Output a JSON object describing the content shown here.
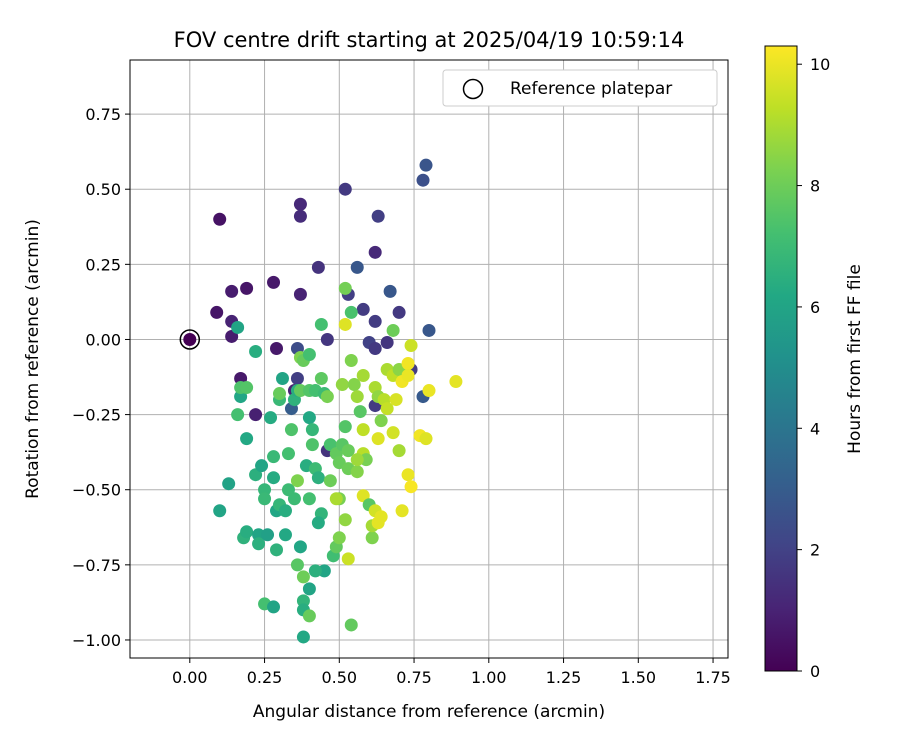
{
  "chart_data": {
    "type": "scatter",
    "title": "FOV centre drift starting at 2025/04/19 10:59:14",
    "xlabel": "Angular distance from reference (arcmin)",
    "ylabel": "Rotation from reference (arcmin)",
    "xlim": [
      -0.2,
      1.8
    ],
    "ylim": [
      -1.06,
      0.93
    ],
    "xticks": [
      0.0,
      0.25,
      0.5,
      0.75,
      1.0,
      1.25,
      1.5,
      1.75
    ],
    "xtick_labels": [
      "0.00",
      "0.25",
      "0.50",
      "0.75",
      "1.00",
      "1.25",
      "1.50",
      "1.75"
    ],
    "yticks": [
      0.75,
      0.5,
      0.25,
      0.0,
      -0.25,
      -0.5,
      -0.75,
      -1.0
    ],
    "ytick_labels": [
      "0.75",
      "0.50",
      "0.25",
      "0.00",
      "−0.25",
      "−0.50",
      "−0.75",
      "−1.00"
    ],
    "grid": true,
    "legend": {
      "position": "top-right",
      "entries": [
        "Reference platepar"
      ]
    },
    "reference_point": {
      "x": 0.0,
      "y": 0.0
    },
    "colorbar": {
      "label": "Hours from first FF file",
      "colormap": "viridis",
      "range": [
        0,
        10.3
      ],
      "ticks": [
        0,
        2,
        4,
        6,
        8,
        10
      ],
      "tick_labels": [
        "0",
        "2",
        "4",
        "6",
        "8",
        "10"
      ]
    },
    "series": [
      {
        "points": [
          [
            0.0,
            0.0,
            0.0
          ],
          [
            0.1,
            0.4,
            0.5
          ],
          [
            0.09,
            0.09,
            0.6
          ],
          [
            0.14,
            0.16,
            0.8
          ],
          [
            0.14,
            0.06,
            1.0
          ],
          [
            0.14,
            0.01,
            0.8
          ],
          [
            0.19,
            0.17,
            0.6
          ],
          [
            0.17,
            -0.13,
            0.7
          ],
          [
            0.22,
            -0.25,
            0.9
          ],
          [
            0.28,
            0.19,
            0.7
          ],
          [
            0.29,
            -0.03,
            0.7
          ],
          [
            0.37,
            0.45,
            1.2
          ],
          [
            0.37,
            0.41,
            1.3
          ],
          [
            0.37,
            0.15,
            1.0
          ],
          [
            0.36,
            -0.03,
            2.4
          ],
          [
            0.43,
            0.24,
            1.5
          ],
          [
            0.46,
            0.0,
            1.6
          ],
          [
            0.52,
            0.5,
            1.7
          ],
          [
            0.53,
            0.15,
            1.9
          ],
          [
            0.56,
            0.24,
            2.8
          ],
          [
            0.58,
            0.1,
            1.8
          ],
          [
            0.62,
            0.29,
            1.2
          ],
          [
            0.63,
            0.41,
            1.9
          ],
          [
            0.62,
            0.06,
            1.8
          ],
          [
            0.67,
            0.16,
            2.8
          ],
          [
            0.7,
            0.09,
            1.7
          ],
          [
            0.66,
            -0.01,
            1.6
          ],
          [
            0.6,
            -0.01,
            2.0
          ],
          [
            0.62,
            -0.03,
            1.7
          ],
          [
            0.78,
            0.53,
            2.5
          ],
          [
            0.79,
            0.58,
            2.7
          ],
          [
            0.8,
            0.03,
            2.8
          ],
          [
            0.78,
            -0.19,
            2.9
          ],
          [
            0.74,
            -0.1,
            1.8
          ],
          [
            0.36,
            -0.13,
            1.9
          ],
          [
            0.34,
            -0.23,
            3.0
          ],
          [
            0.35,
            -0.17,
            1.0
          ],
          [
            0.62,
            -0.22,
            1.8
          ],
          [
            0.46,
            -0.37,
            1.5
          ],
          [
            0.16,
            0.04,
            6.0
          ],
          [
            0.22,
            -0.04,
            6.4
          ],
          [
            0.17,
            -0.19,
            6.1
          ],
          [
            0.19,
            -0.33,
            6.2
          ],
          [
            0.27,
            -0.26,
            6.3
          ],
          [
            0.13,
            -0.48,
            5.9
          ],
          [
            0.1,
            -0.57,
            6.0
          ],
          [
            0.16,
            -0.25,
            7.2
          ],
          [
            0.17,
            -0.16,
            7.4
          ],
          [
            0.19,
            -0.16,
            7.5
          ],
          [
            0.22,
            -0.45,
            6.5
          ],
          [
            0.24,
            -0.42,
            6.0
          ],
          [
            0.25,
            -0.5,
            6.8
          ],
          [
            0.25,
            -0.53,
            6.9
          ],
          [
            0.18,
            -0.66,
            6.6
          ],
          [
            0.19,
            -0.64,
            6.4
          ],
          [
            0.23,
            -0.65,
            6.0
          ],
          [
            0.23,
            -0.68,
            6.5
          ],
          [
            0.26,
            -0.65,
            5.8
          ],
          [
            0.29,
            -0.7,
            6.6
          ],
          [
            0.25,
            -0.88,
            7.2
          ],
          [
            0.28,
            -0.89,
            6.0
          ],
          [
            0.3,
            -0.2,
            6.9
          ],
          [
            0.3,
            -0.18,
            7.9
          ],
          [
            0.31,
            -0.13,
            6.0
          ],
          [
            0.28,
            -0.39,
            6.9
          ],
          [
            0.28,
            -0.46,
            6.3
          ],
          [
            0.29,
            -0.57,
            6.1
          ],
          [
            0.3,
            -0.55,
            6.8
          ],
          [
            0.32,
            -0.65,
            6.2
          ],
          [
            0.32,
            -0.57,
            6.4
          ],
          [
            0.33,
            -0.5,
            7.0
          ],
          [
            0.33,
            -0.38,
            7.2
          ],
          [
            0.34,
            -0.3,
            7.4
          ],
          [
            0.35,
            -0.2,
            6.6
          ],
          [
            0.36,
            -0.17,
            6.4
          ],
          [
            0.37,
            -0.17,
            7.8
          ],
          [
            0.36,
            -0.47,
            8.3
          ],
          [
            0.36,
            -0.75,
            7.6
          ],
          [
            0.37,
            -0.69,
            6.1
          ],
          [
            0.38,
            -0.79,
            8.0
          ],
          [
            0.38,
            -0.87,
            6.7
          ],
          [
            0.38,
            -0.9,
            6.4
          ],
          [
            0.38,
            -0.99,
            6.2
          ],
          [
            0.4,
            -0.83,
            6.0
          ],
          [
            0.4,
            -0.92,
            7.9
          ],
          [
            0.39,
            -0.42,
            6.4
          ],
          [
            0.4,
            -0.26,
            6.2
          ],
          [
            0.41,
            -0.3,
            6.8
          ],
          [
            0.41,
            -0.35,
            7.4
          ],
          [
            0.42,
            -0.43,
            7.0
          ],
          [
            0.43,
            -0.46,
            6.5
          ],
          [
            0.44,
            -0.58,
            6.7
          ],
          [
            0.43,
            -0.61,
            6.3
          ],
          [
            0.45,
            -0.77,
            6.0
          ],
          [
            0.42,
            -0.77,
            6.5
          ],
          [
            0.44,
            0.05,
            7.2
          ],
          [
            0.37,
            -0.06,
            8.3
          ],
          [
            0.38,
            -0.07,
            7.9
          ],
          [
            0.4,
            -0.05,
            7.2
          ],
          [
            0.4,
            -0.17,
            7.5
          ],
          [
            0.42,
            -0.17,
            7.2
          ],
          [
            0.45,
            -0.18,
            7.0
          ],
          [
            0.44,
            -0.13,
            7.7
          ],
          [
            0.46,
            -0.19,
            8.2
          ],
          [
            0.47,
            -0.35,
            7.3
          ],
          [
            0.49,
            -0.38,
            7.8
          ],
          [
            0.5,
            -0.41,
            7.9
          ],
          [
            0.51,
            -0.35,
            7.6
          ],
          [
            0.52,
            -0.29,
            7.5
          ],
          [
            0.53,
            -0.37,
            7.9
          ],
          [
            0.53,
            -0.43,
            8.0
          ],
          [
            0.48,
            -0.72,
            7.1
          ],
          [
            0.49,
            -0.69,
            7.8
          ],
          [
            0.5,
            -0.66,
            8.3
          ],
          [
            0.52,
            -0.6,
            8.6
          ],
          [
            0.53,
            -0.73,
            9.5
          ],
          [
            0.54,
            -0.95,
            7.8
          ],
          [
            0.5,
            -0.53,
            8.2
          ],
          [
            0.54,
            -0.07,
            8.3
          ],
          [
            0.54,
            0.09,
            7.3
          ],
          [
            0.52,
            0.17,
            8.1
          ],
          [
            0.52,
            0.05,
            9.8
          ],
          [
            0.51,
            -0.15,
            8.6
          ],
          [
            0.55,
            -0.15,
            8.4
          ],
          [
            0.56,
            -0.19,
            8.8
          ],
          [
            0.57,
            -0.24,
            7.6
          ],
          [
            0.58,
            -0.12,
            8.9
          ],
          [
            0.58,
            -0.3,
            9.3
          ],
          [
            0.58,
            -0.38,
            9.2
          ],
          [
            0.59,
            -0.4,
            8.2
          ],
          [
            0.58,
            -0.52,
            9.8
          ],
          [
            0.6,
            -0.55,
            7.6
          ],
          [
            0.61,
            -0.66,
            8.3
          ],
          [
            0.61,
            -0.62,
            8.9
          ],
          [
            0.62,
            -0.57,
            9.6
          ],
          [
            0.63,
            -0.61,
            9.9
          ],
          [
            0.64,
            -0.59,
            9.9
          ],
          [
            0.62,
            -0.16,
            9.0
          ],
          [
            0.63,
            -0.19,
            8.6
          ],
          [
            0.63,
            -0.33,
            9.8
          ],
          [
            0.64,
            -0.27,
            8.3
          ],
          [
            0.65,
            -0.2,
            9.2
          ],
          [
            0.66,
            -0.23,
            9.4
          ],
          [
            0.66,
            -0.1,
            9.0
          ],
          [
            0.68,
            0.03,
            8.0
          ],
          [
            0.68,
            -0.12,
            9.3
          ],
          [
            0.69,
            -0.2,
            9.7
          ],
          [
            0.7,
            -0.1,
            8.5
          ],
          [
            0.7,
            -0.37,
            8.9
          ],
          [
            0.71,
            -0.14,
            10.1
          ],
          [
            0.71,
            -0.57,
            9.9
          ],
          [
            0.73,
            -0.08,
            10.1
          ],
          [
            0.74,
            -0.02,
            9.5
          ],
          [
            0.73,
            -0.12,
            10.0
          ],
          [
            0.73,
            -0.45,
            10.0
          ],
          [
            0.74,
            -0.49,
            10.2
          ],
          [
            0.77,
            -0.32,
            10.1
          ],
          [
            0.79,
            -0.33,
            9.8
          ],
          [
            0.8,
            -0.17,
            10.0
          ],
          [
            0.89,
            -0.14,
            9.9
          ],
          [
            0.68,
            -0.31,
            9.6
          ],
          [
            0.56,
            -0.44,
            8.4
          ],
          [
            0.56,
            -0.4,
            8.8
          ],
          [
            0.47,
            -0.47,
            8.0
          ],
          [
            0.49,
            -0.53,
            9.0
          ],
          [
            0.4,
            -0.53,
            7.2
          ],
          [
            0.35,
            -0.53,
            7.0
          ]
        ]
      }
    ]
  }
}
